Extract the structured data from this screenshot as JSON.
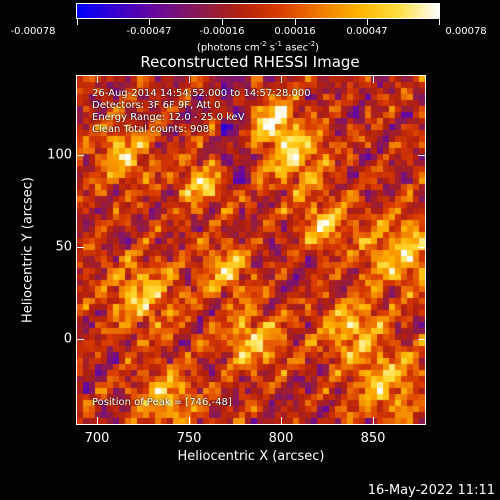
{
  "colorbar": {
    "tick_labels": [
      "-0.00078",
      "-0.00047",
      "-0.00016",
      "0.00016",
      "0.00047",
      "0.00078"
    ],
    "units_text": "(photons cm",
    "units_exp1": "-2",
    "units_mid1": " s",
    "units_exp2": "-1",
    "units_mid2": " asec",
    "units_exp3": "-2",
    "units_close": ")"
  },
  "title": "Reconstructed RHESSI Image",
  "annotations": {
    "time_range": "26-Aug-2014 14:54:52.000 to 14:57:28.000",
    "detectors": "Detectors: 3F 6F 9F, Att 0",
    "energy_range": "Energy Range: 12.0 - 25.0 keV",
    "clean_info": "Clean   Total counts: 908.",
    "peak_position": "Position of Peak = [746,-48]"
  },
  "axes": {
    "xlabel": "Heliocentric X (arcsec)",
    "ylabel": "Heliocentric Y (arcsec)",
    "xticks": [
      "700",
      "750",
      "800",
      "850"
    ],
    "yticks": [
      "100",
      "50",
      "0"
    ]
  },
  "date_stamp": "16-May-2022 11:11",
  "colors": {
    "colormap": [
      "#0000ff",
      "#3b00cc",
      "#6a0a9a",
      "#8a1a55",
      "#b02010",
      "#d83a00",
      "#f07800",
      "#ffb400",
      "#ffe040",
      "#ffffff"
    ]
  }
}
